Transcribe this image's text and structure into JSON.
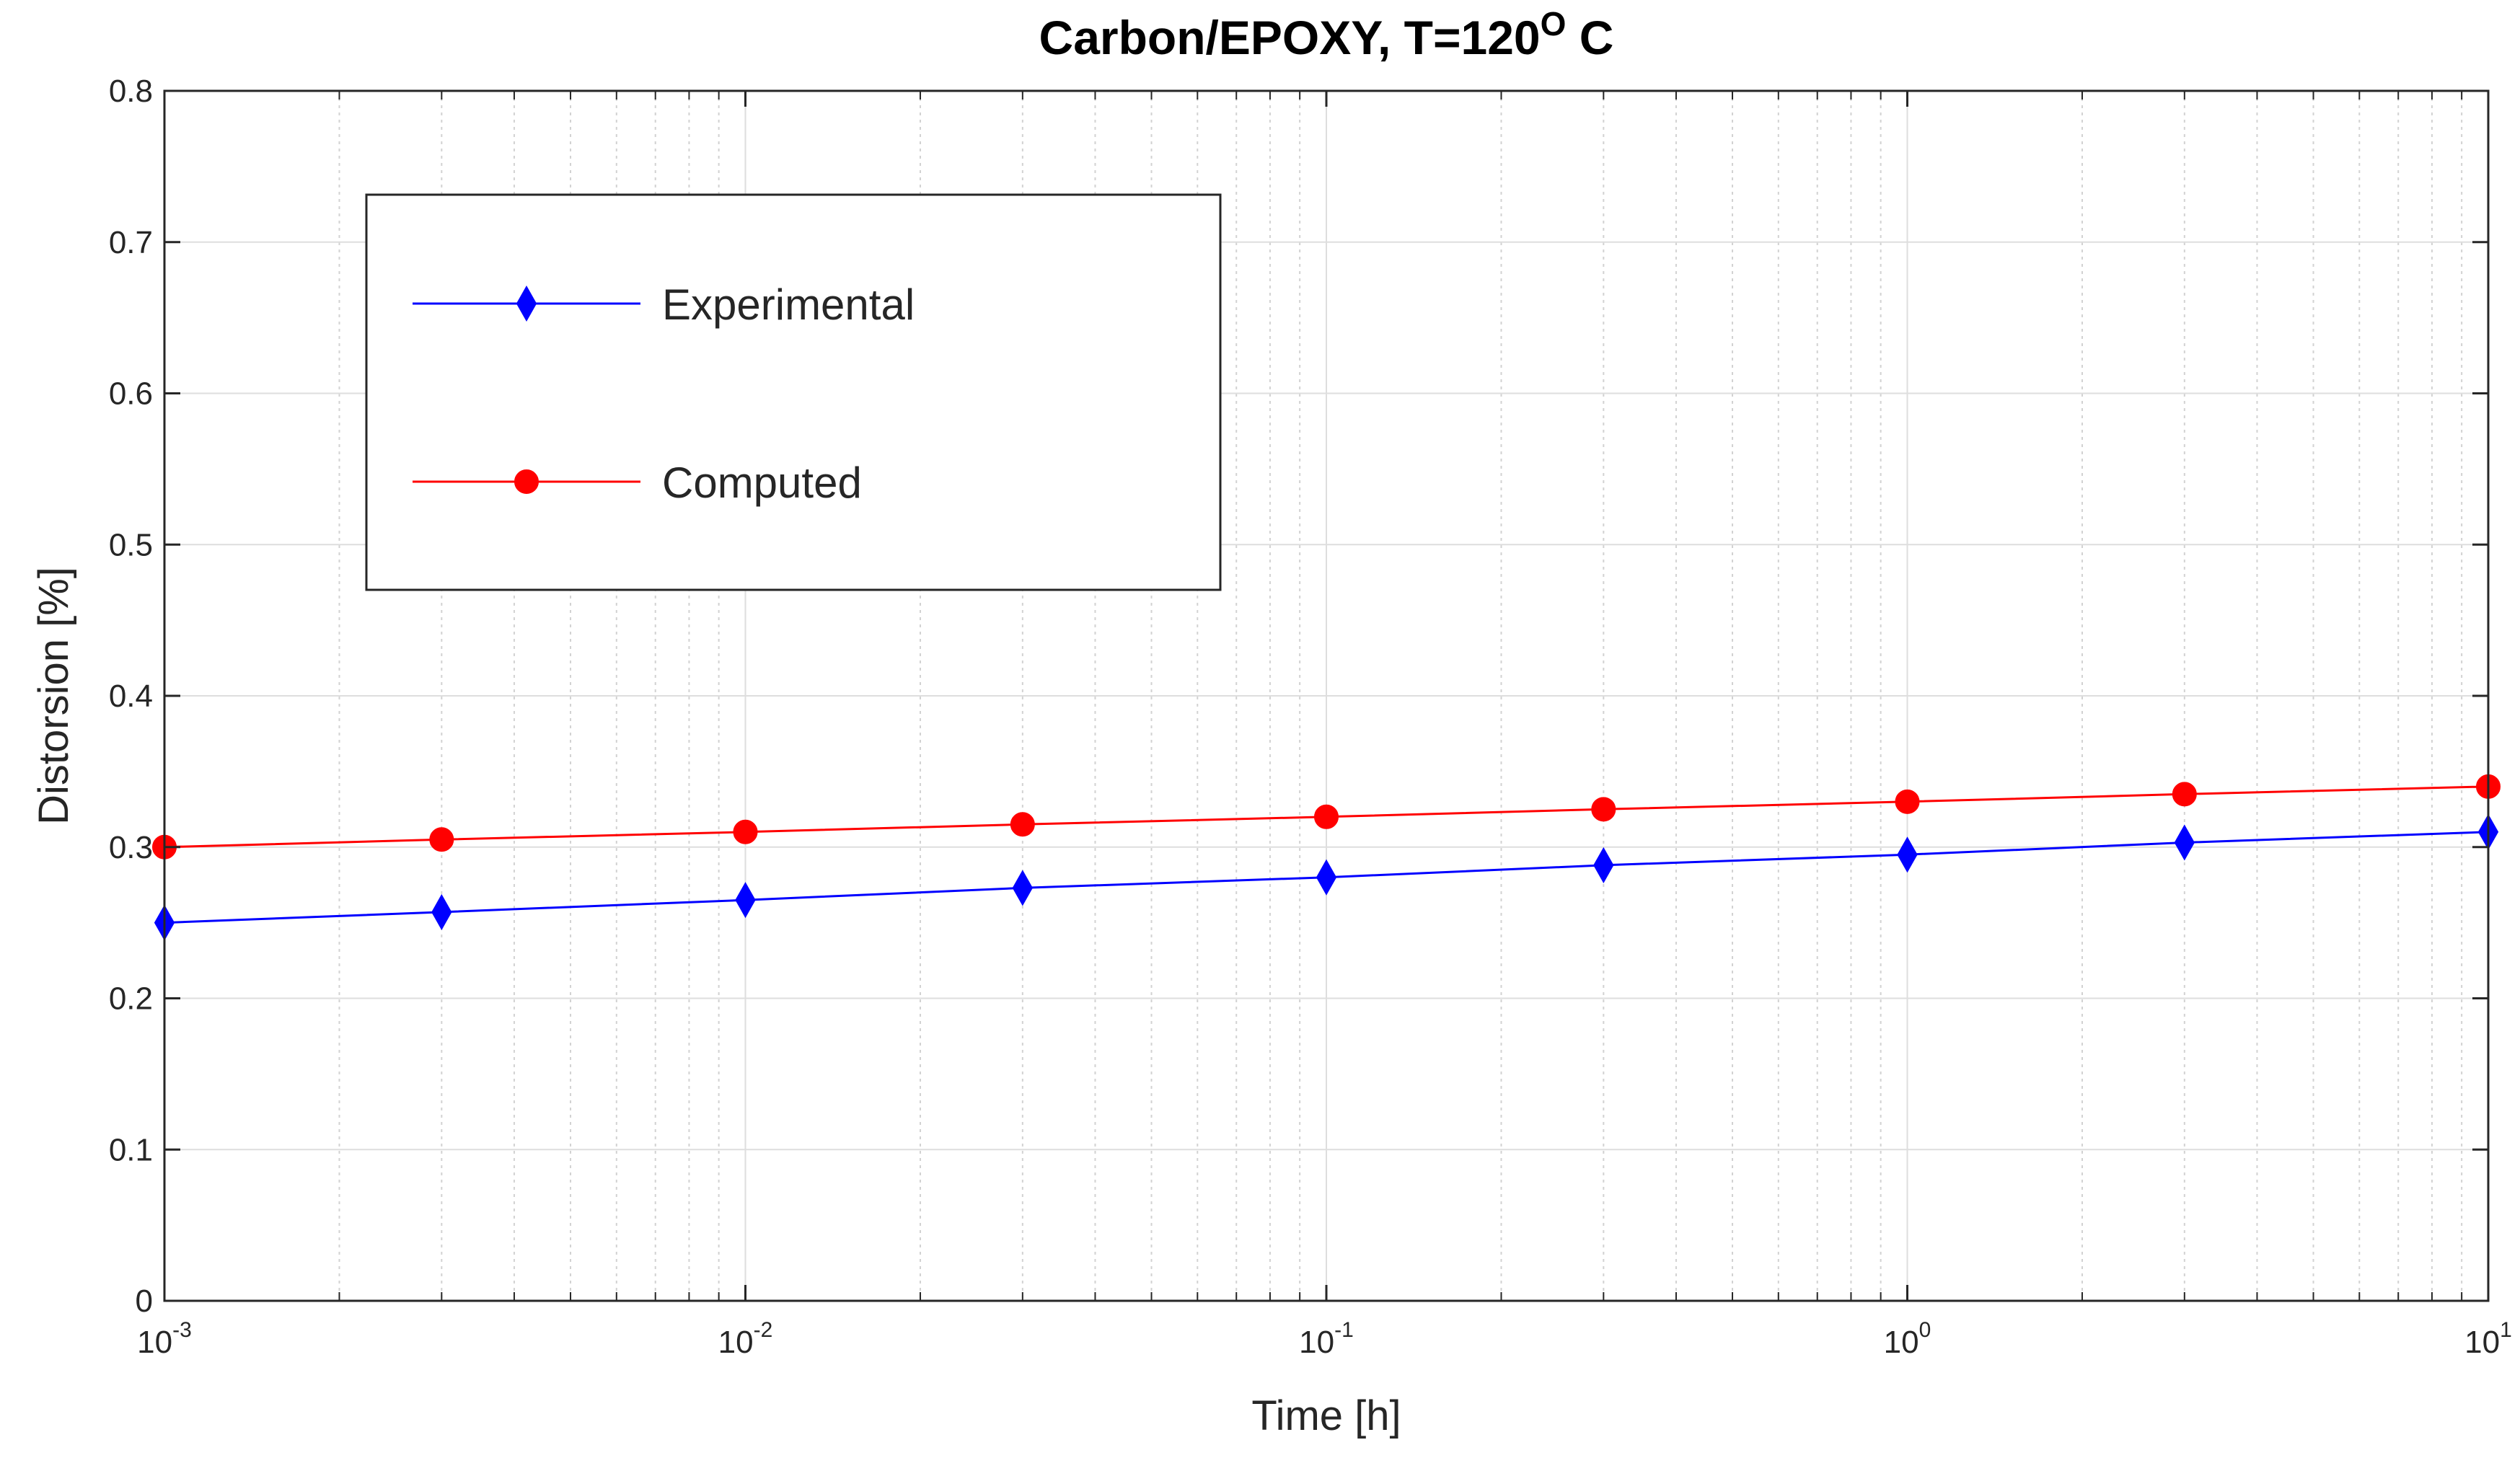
{
  "chart_data": {
    "type": "line",
    "title": {
      "main": "Carbon/EPOXY, T=120",
      "superscript": "O",
      "suffix": " C"
    },
    "xlabel": "Time [h]",
    "ylabel": "Distorsion [%]",
    "xscale": "log",
    "xlim": [
      0.001,
      10
    ],
    "ylim": [
      0,
      0.8
    ],
    "grid": true,
    "x_ticks": [
      {
        "base": "10",
        "exp": "-3",
        "value": 0.001
      },
      {
        "base": "10",
        "exp": "-2",
        "value": 0.01
      },
      {
        "base": "10",
        "exp": "-1",
        "value": 0.1
      },
      {
        "base": "10",
        "exp": "0",
        "value": 1
      },
      {
        "base": "10",
        "exp": "1",
        "value": 10
      }
    ],
    "y_ticks": [
      "0",
      "0.1",
      "0.2",
      "0.3",
      "0.4",
      "0.5",
      "0.6",
      "0.7",
      "0.8"
    ],
    "x": [
      0.001,
      0.003,
      0.01,
      0.03,
      0.1,
      0.3,
      1,
      3,
      10
    ],
    "series": [
      {
        "name": "Experimental",
        "color": "#0000ff",
        "marker": "diamond",
        "values": [
          0.25,
          0.257,
          0.265,
          0.273,
          0.28,
          0.288,
          0.295,
          0.303,
          0.31
        ]
      },
      {
        "name": "Computed",
        "color": "#ff0000",
        "marker": "circle",
        "values": [
          0.3,
          0.305,
          0.31,
          0.315,
          0.32,
          0.325,
          0.33,
          0.335,
          0.34
        ]
      }
    ],
    "legend": {
      "location": "upper-left inside axes",
      "entries": [
        "Experimental",
        "Computed"
      ]
    }
  }
}
